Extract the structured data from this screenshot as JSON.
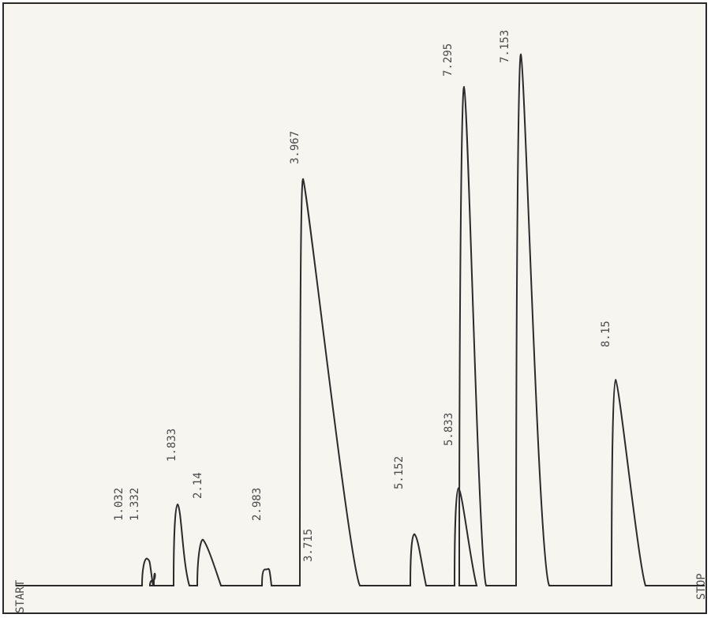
{
  "chart_data": {
    "type": "line",
    "title": "",
    "xlabel": "",
    "ylabel": "",
    "start_label": "START",
    "stop_label": "STOP",
    "x_range": [
      0,
      9.0
    ],
    "y_range": [
      0,
      100
    ],
    "peaks": [
      {
        "label": "1.032",
        "rt": 1.032,
        "height": 5.0
      },
      {
        "label": "1.332",
        "rt": 1.332,
        "height": 1.0
      },
      {
        "label": "1.833",
        "rt": 1.833,
        "height": 15.0
      },
      {
        "label": "2.14",
        "rt": 2.14,
        "height": 8.5
      },
      {
        "label": "2.983",
        "rt": 2.983,
        "height": 3.0
      },
      {
        "label": "3.715",
        "rt": 3.715,
        "height": 1.0
      },
      {
        "label": "3.967",
        "rt": 3.967,
        "height": 75.0
      },
      {
        "label": "5.152",
        "rt": 5.152,
        "height": 9.5
      },
      {
        "label": "5.833",
        "rt": 5.833,
        "height": 18.0
      },
      {
        "label": "7.295",
        "rt": 7.295,
        "height": 92.0
      },
      {
        "label": "7.153",
        "rt": 7.153,
        "height": 98.0
      },
      {
        "label": "8.15",
        "rt": 8.15,
        "height": 38.0
      }
    ],
    "grid": false,
    "colors": {
      "trace": "#2b2b2b",
      "paper": "#f6f5ef",
      "text": "#4a4a4a"
    }
  }
}
